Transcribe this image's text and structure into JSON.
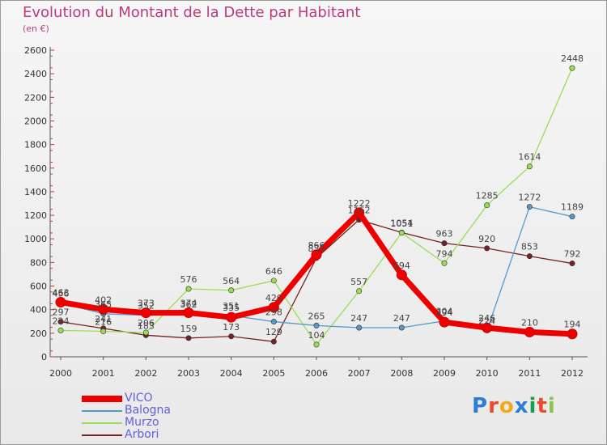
{
  "chart_data": {
    "type": "line",
    "title": "Evolution du Montant de la Dette par Habitant",
    "subtitle": "(en €)",
    "x": [
      "2000",
      "2001",
      "2002",
      "2003",
      "2004",
      "2005",
      "2006",
      "2007",
      "2008",
      "2009",
      "2010",
      "2011",
      "2012"
    ],
    "ylim": [
      0,
      2600
    ],
    "yticks": [
      0,
      200,
      400,
      600,
      800,
      1000,
      1200,
      1400,
      1600,
      1800,
      2000,
      2200,
      2400,
      2600
    ],
    "grid": false,
    "legend_position": "bottom-left",
    "series": [
      {
        "name": "VICO",
        "color": "#ee0000",
        "values": [
          463,
          402,
          373,
          374,
          335,
          420,
          866,
          1222,
          694,
          294,
          246,
          210,
          194
        ]
      },
      {
        "name": "Balogna",
        "color": "#5599cc",
        "values": [
          456,
          365,
          352,
          362,
          351,
          298,
          265,
          247,
          247,
          304,
          224,
          1272,
          1189
        ]
      },
      {
        "name": "Murzo",
        "color": "#99dd55",
        "values": [
          224,
          216,
          206,
          576,
          564,
          646,
          104,
          557,
          1051,
          794,
          1285,
          1614,
          2448
        ]
      },
      {
        "name": "Arbori",
        "color": "#772222",
        "values": [
          297,
          241,
          183,
          159,
          173,
          129,
          838,
          1162,
          1054,
          963,
          920,
          853,
          792
        ]
      }
    ]
  },
  "logo": {
    "letters": [
      "P",
      "r",
      "o",
      "x",
      "i",
      "t",
      "i"
    ],
    "colors": [
      "#2a7fd4",
      "#e84c2a",
      "#f2a81d",
      "#2a7fd4",
      "#1a9c4a",
      "#e84c2a",
      "#8bc34a"
    ]
  }
}
